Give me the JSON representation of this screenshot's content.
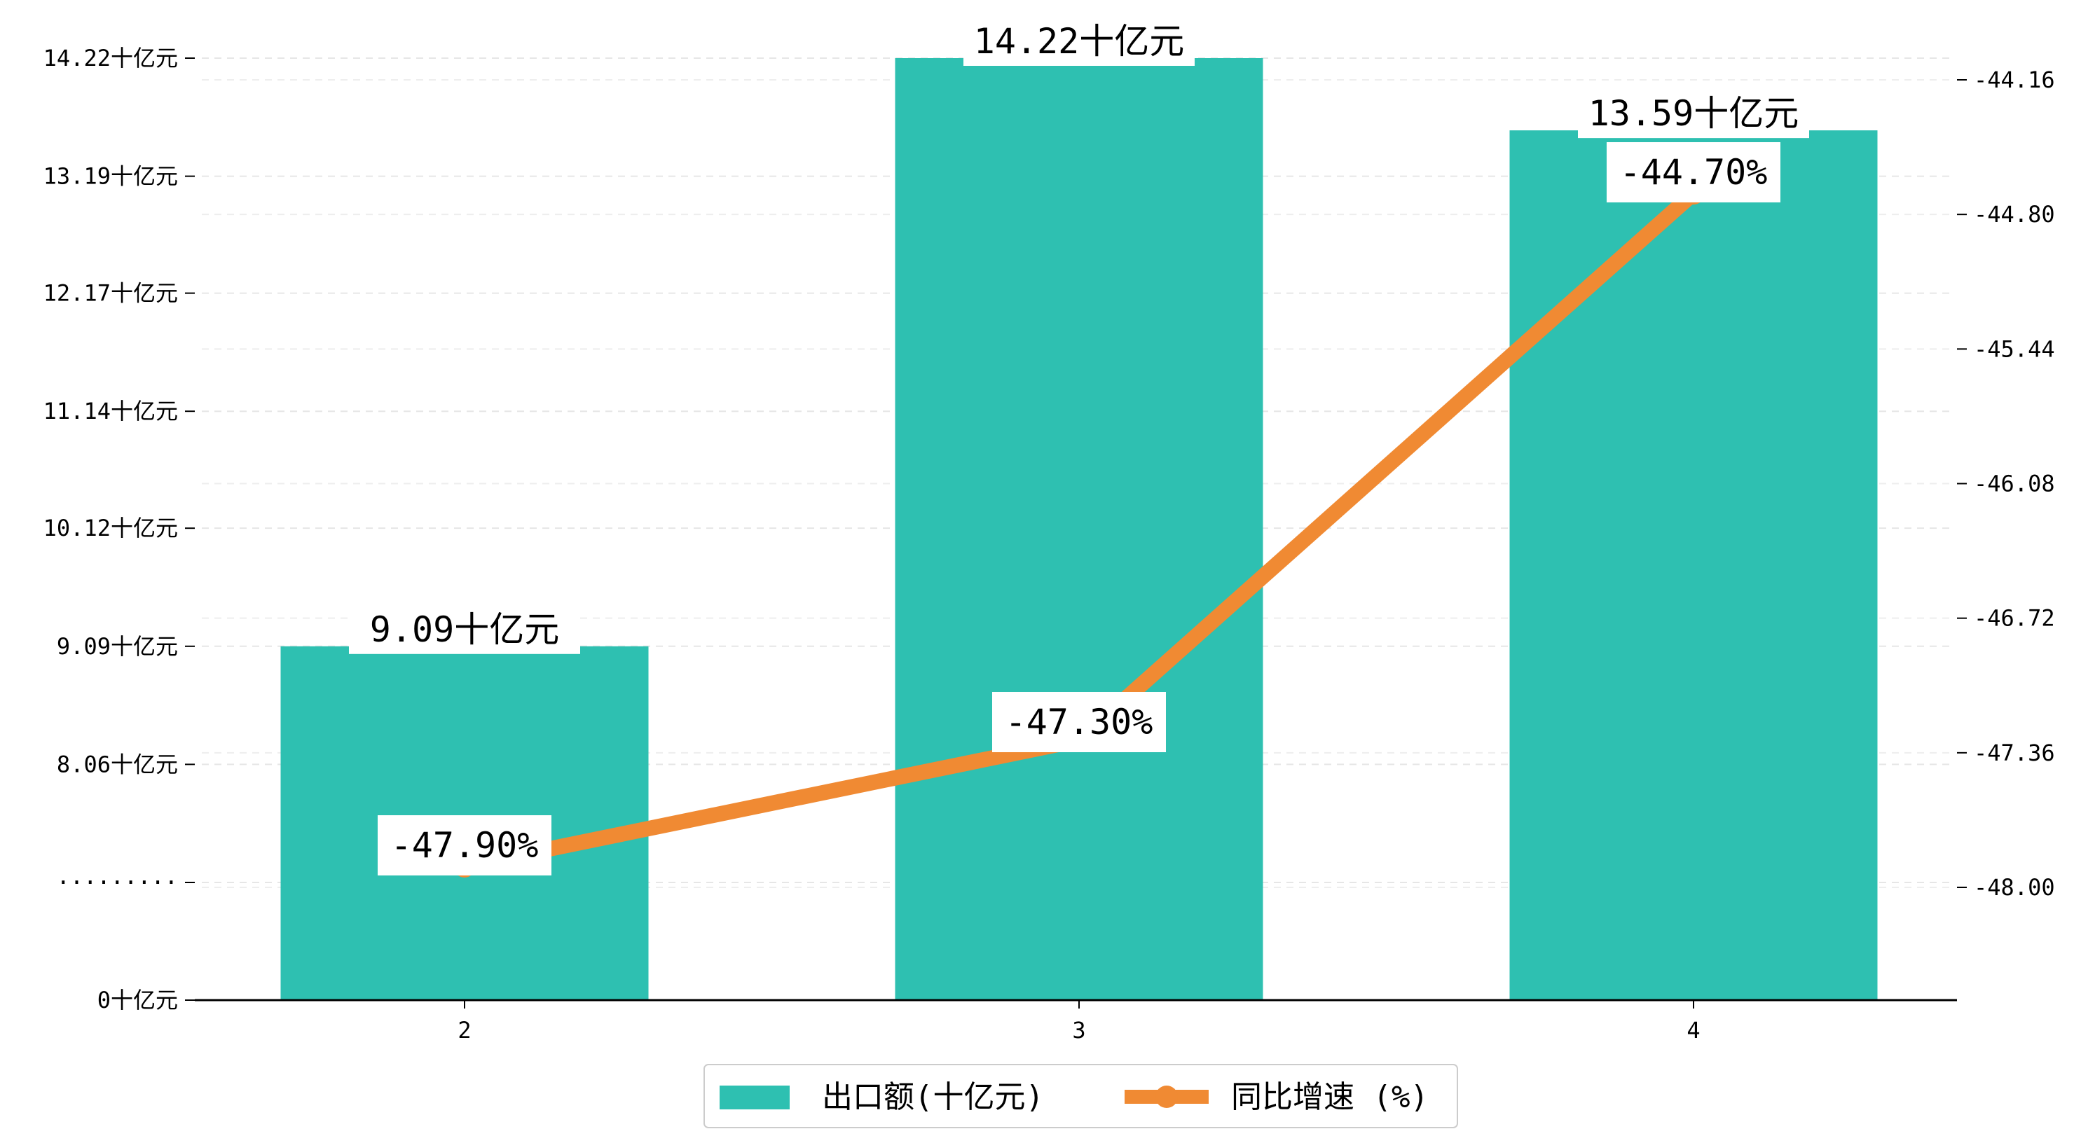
{
  "chart_data": {
    "type": "bar",
    "title": "",
    "xlabel": "",
    "ylabel": "",
    "categories": [
      "2",
      "3",
      "4"
    ],
    "series": [
      {
        "name": "出口额(十亿元)",
        "type": "bar",
        "axis": "left",
        "values": [
          9.09,
          14.22,
          13.59
        ],
        "value_labels": [
          "9.09十亿元",
          "14.22十亿元",
          "13.59十亿元"
        ],
        "color": "#2ec0b1"
      },
      {
        "name": "同比增速 (%)",
        "type": "line",
        "axis": "right",
        "values": [
          -47.9,
          -47.3,
          -44.7
        ],
        "value_labels": [
          "-47.90%",
          "-47.30%",
          "-44.70%"
        ],
        "color": "#f08a33"
      }
    ],
    "left_axis": {
      "broken": true,
      "tick_labels": [
        "0十亿元",
        "·········",
        "8.06十亿元",
        "9.09十亿元",
        "10.12十亿元",
        "11.14十亿元",
        "12.17十亿元",
        "13.19十亿元",
        "14.22十亿元"
      ],
      "upper_range": [
        7.03,
        14.22
      ]
    },
    "right_axis": {
      "ylim": [
        -48.6,
        -44.0
      ],
      "tick_values": [
        -48.0,
        -47.36,
        -46.72,
        -46.08,
        -45.44,
        -44.8,
        -44.16
      ],
      "tick_labels": [
        "-48.00",
        "-47.36",
        "-46.72",
        "-46.08",
        "-45.44",
        "-44.80",
        "-44.16"
      ]
    },
    "grid": "horizontal-dashed",
    "legend_position": "bottom-center"
  }
}
